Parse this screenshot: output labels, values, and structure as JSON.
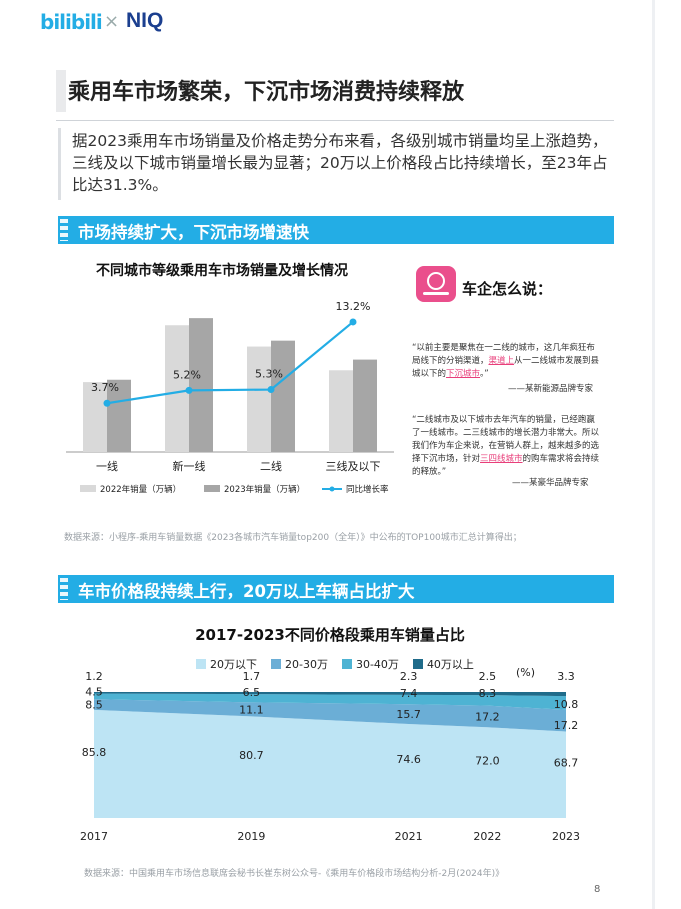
{
  "header": {
    "logo_bilibili": "bilibili",
    "logo_separator": "×",
    "logo_niq": "NIQ"
  },
  "main_title": "乘用车市场繁荣，下沉市场消费持续释放",
  "intro_text": "据2023乘用车市场销量及价格走势分布来看，各级别城市销量均呈上涨趋势，三线及以下城市销量增长最为显著；20万以上价格段占比持续增长，至23年占比达31.3%。",
  "section1": {
    "heading": "市场持续扩大，下沉市场增速快",
    "chart_title": "不同城市等级乘用车市场销量及增长情况",
    "source": "数据来源：小程序-乘用车销量数据《2023各城市汽车销量top200（全年）》中公布的TOP100城市汇总计算得出；"
  },
  "sidebar": {
    "title": "车企怎么说：",
    "quote1_parts": [
      "“以前主要是聚焦在一二线的城市，这几年疯狂布局线下的分销渠道，",
      "渠道上",
      "从一二线城市发展到县城以下的",
      "下沉城市",
      "。”"
    ],
    "quote1_source": "——某新能源品牌专家",
    "quote2_parts": [
      "“二线城市及以下城市去年汽车的销量，已经跑赢了一线城市。二三线城市的增长潜力非常大。所以我们作为车企来说，在营销人群上，越来越多的选择下沉市场，针对",
      "三四线城市",
      "的购车需求将会持续的释放。”"
    ],
    "quote2_source": "——某豪华品牌专家"
  },
  "section2": {
    "heading": "车市价格段持续上行，20万以上车辆占比扩大",
    "chart_title": "2017-2023不同价格段乘用车销量占比",
    "unit_label": "(%)",
    "source": "数据来源：中国乘用车市场信息联席会秘书长崔东树公众号-《乘用车价格段市场结构分析-2月(2024年)》"
  },
  "page_number": "8",
  "chart_data": [
    {
      "type": "bar",
      "title": "不同城市等级乘用车市场销量及增长情况",
      "categories": [
        "一线",
        "新一线",
        "二线",
        "三线及以下"
      ],
      "series": [
        {
          "name": "2022年销量（万辆）",
          "type": "bar",
          "color": "#d9d9d9",
          "values": [
            118,
            214,
            178,
            138
          ]
        },
        {
          "name": "2023年销量（万辆）",
          "type": "bar",
          "color": "#a6a6a6",
          "values": [
            122,
            226,
            188,
            156
          ]
        },
        {
          "name": "同比增长率",
          "type": "line",
          "color": "#23ade5",
          "values": [
            3.7,
            5.2,
            5.3,
            13.2
          ],
          "labels": [
            "3.7%",
            "5.2%",
            "5.3%",
            "13.2%"
          ]
        }
      ],
      "ylim": [
        0,
        260
      ],
      "growth_ylim": [
        -2,
        16
      ]
    },
    {
      "type": "area",
      "title": "2017-2023不同价格段乘用车销量占比",
      "x": [
        "2017",
        "2019",
        "2021",
        "2022",
        "2023"
      ],
      "unit": "(%)",
      "series": [
        {
          "name": "20万以下",
          "color": "#bde4f4",
          "values": [
            85.8,
            80.7,
            74.6,
            72.0,
            68.7
          ]
        },
        {
          "name": "20-30万",
          "color": "#6baed6",
          "values": [
            8.5,
            11.1,
            15.7,
            17.2,
            17.2
          ]
        },
        {
          "name": "30-40万",
          "color": "#4eb3d3",
          "values": [
            4.5,
            6.5,
            7.4,
            8.3,
            10.8
          ]
        },
        {
          "name": "40万以上",
          "color": "#1f6b8a",
          "values": [
            1.2,
            1.7,
            2.3,
            2.5,
            3.3
          ]
        }
      ],
      "labels": [
        [
          "85.8",
          "80.7",
          "74.6",
          "72.0",
          "68.7"
        ],
        [
          "8.5",
          "11.1",
          "15.7",
          "17.2",
          "17.2"
        ],
        [
          "4.5",
          "6.5",
          "7.4",
          "8.3",
          "10.8"
        ],
        [
          "1.2",
          "1.7",
          "2.3",
          "2.5",
          "3.3"
        ]
      ],
      "ylim": [
        0,
        100
      ],
      "stacked": true
    }
  ]
}
